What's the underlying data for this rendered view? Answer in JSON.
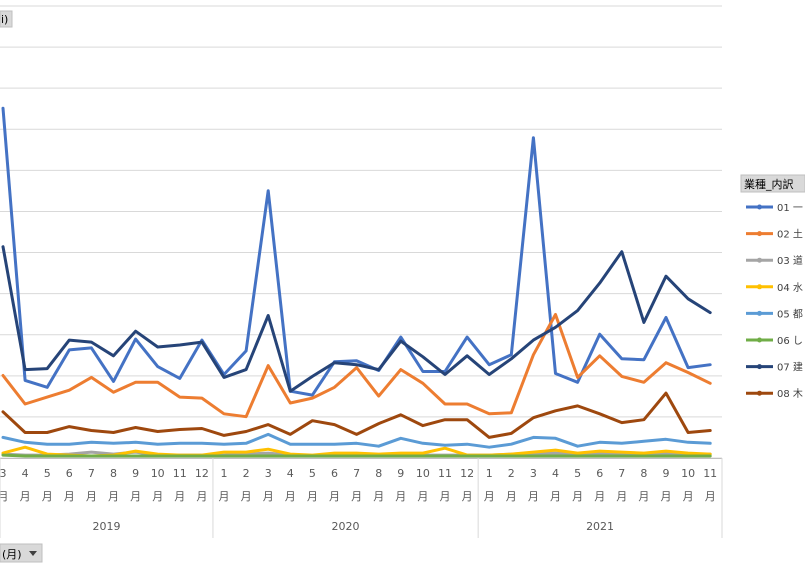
{
  "top_field_button": {
    "label": "i)"
  },
  "bottom_field_button": {
    "label": "(月)",
    "dropdown_icon": "caret-down-icon"
  },
  "legend": {
    "title": "業種_内訳",
    "items": [
      {
        "label": "01 一",
        "color": "#4472C4"
      },
      {
        "label": "02 土",
        "color": "#ED7D31"
      },
      {
        "label": "03 道",
        "color": "#A5A5A5"
      },
      {
        "label": "04 水",
        "color": "#FFC000"
      },
      {
        "label": "05 都",
        "color": "#5B9BD5"
      },
      {
        "label": "06 し",
        "color": "#70AD47"
      },
      {
        "label": "07 建",
        "color": "#264478"
      },
      {
        "label": "08 木",
        "color": "#9E480E"
      }
    ]
  },
  "chart_data": {
    "type": "line",
    "x_axis": {
      "month_labels": [
        "3",
        "4",
        "5",
        "6",
        "7",
        "8",
        "9",
        "10",
        "11",
        "12",
        "1",
        "2",
        "3",
        "4",
        "5",
        "6",
        "7",
        "8",
        "9",
        "10",
        "11",
        "12",
        "1",
        "2",
        "3",
        "4",
        "5",
        "6",
        "7",
        "8",
        "9",
        "10",
        "11"
      ],
      "month_suffix": "月",
      "years": [
        {
          "label": "2019",
          "start": 0,
          "end": 9
        },
        {
          "label": "2020",
          "start": 10,
          "end": 21
        },
        {
          "label": "2021",
          "start": 22,
          "end": 32
        }
      ]
    },
    "y_range": [
      0,
      460
    ],
    "gridlines": 11,
    "series": [
      {
        "name": "01 一",
        "color": "#4472C4",
        "values": [
          356,
          79,
          72,
          110,
          112,
          78,
          121,
          93,
          81,
          120,
          85,
          109,
          272,
          68,
          64,
          98,
          99,
          89,
          123,
          88,
          88,
          123,
          95,
          105,
          326,
          86,
          77,
          126,
          101,
          100,
          143,
          92,
          95
        ]
      },
      {
        "name": "02 土",
        "color": "#ED7D31",
        "values": [
          84,
          55,
          62,
          69,
          82,
          67,
          77,
          77,
          62,
          61,
          45,
          42,
          94,
          56,
          61,
          72,
          92,
          63,
          90,
          76,
          55,
          55,
          45,
          46,
          105,
          146,
          82,
          104,
          83,
          77,
          97,
          87,
          76
        ]
      },
      {
        "name": "03 道",
        "color": "#A5A5A5",
        "values": [
          4,
          3,
          3,
          4,
          6,
          4,
          6,
          3,
          3,
          3,
          3,
          4,
          5,
          3,
          2,
          3,
          4,
          3,
          4,
          3,
          3,
          3,
          3,
          4,
          5,
          5,
          4,
          5,
          4,
          4,
          5,
          4,
          4
        ]
      },
      {
        "name": "04 水",
        "color": "#FFC000",
        "values": [
          5,
          11,
          4,
          3,
          2,
          3,
          7,
          4,
          3,
          3,
          6,
          6,
          9,
          4,
          3,
          5,
          5,
          4,
          5,
          5,
          10,
          3,
          3,
          4,
          6,
          8,
          5,
          7,
          6,
          5,
          7,
          5,
          4
        ]
      },
      {
        "name": "05 都",
        "color": "#5B9BD5",
        "values": [
          21,
          16,
          14,
          14,
          16,
          15,
          16,
          14,
          15,
          15,
          14,
          15,
          24,
          14,
          14,
          14,
          15,
          12,
          20,
          15,
          13,
          14,
          11,
          14,
          21,
          20,
          12,
          16,
          15,
          17,
          19,
          16,
          15
        ]
      },
      {
        "name": "06 し",
        "color": "#70AD47",
        "values": [
          3,
          2,
          2,
          2,
          2,
          2,
          2,
          2,
          2,
          2,
          2,
          2,
          2,
          2,
          2,
          2,
          2,
          2,
          2,
          2,
          2,
          2,
          2,
          2,
          2,
          2,
          2,
          2,
          2,
          2,
          2,
          2,
          2
        ]
      },
      {
        "name": "07 建",
        "color": "#264478",
        "values": [
          215,
          90,
          91,
          120,
          118,
          104,
          129,
          113,
          115,
          118,
          82,
          90,
          145,
          68,
          83,
          97,
          95,
          90,
          119,
          103,
          85,
          104,
          85,
          101,
          120,
          133,
          150,
          178,
          210,
          138,
          185,
          162,
          148
        ]
      },
      {
        "name": "08 木",
        "color": "#9E480E",
        "values": [
          47,
          26,
          26,
          32,
          28,
          26,
          31,
          27,
          29,
          30,
          23,
          27,
          34,
          24,
          38,
          34,
          24,
          35,
          44,
          33,
          39,
          39,
          21,
          25,
          41,
          48,
          53,
          45,
          36,
          39,
          66,
          26,
          28
        ]
      }
    ]
  }
}
